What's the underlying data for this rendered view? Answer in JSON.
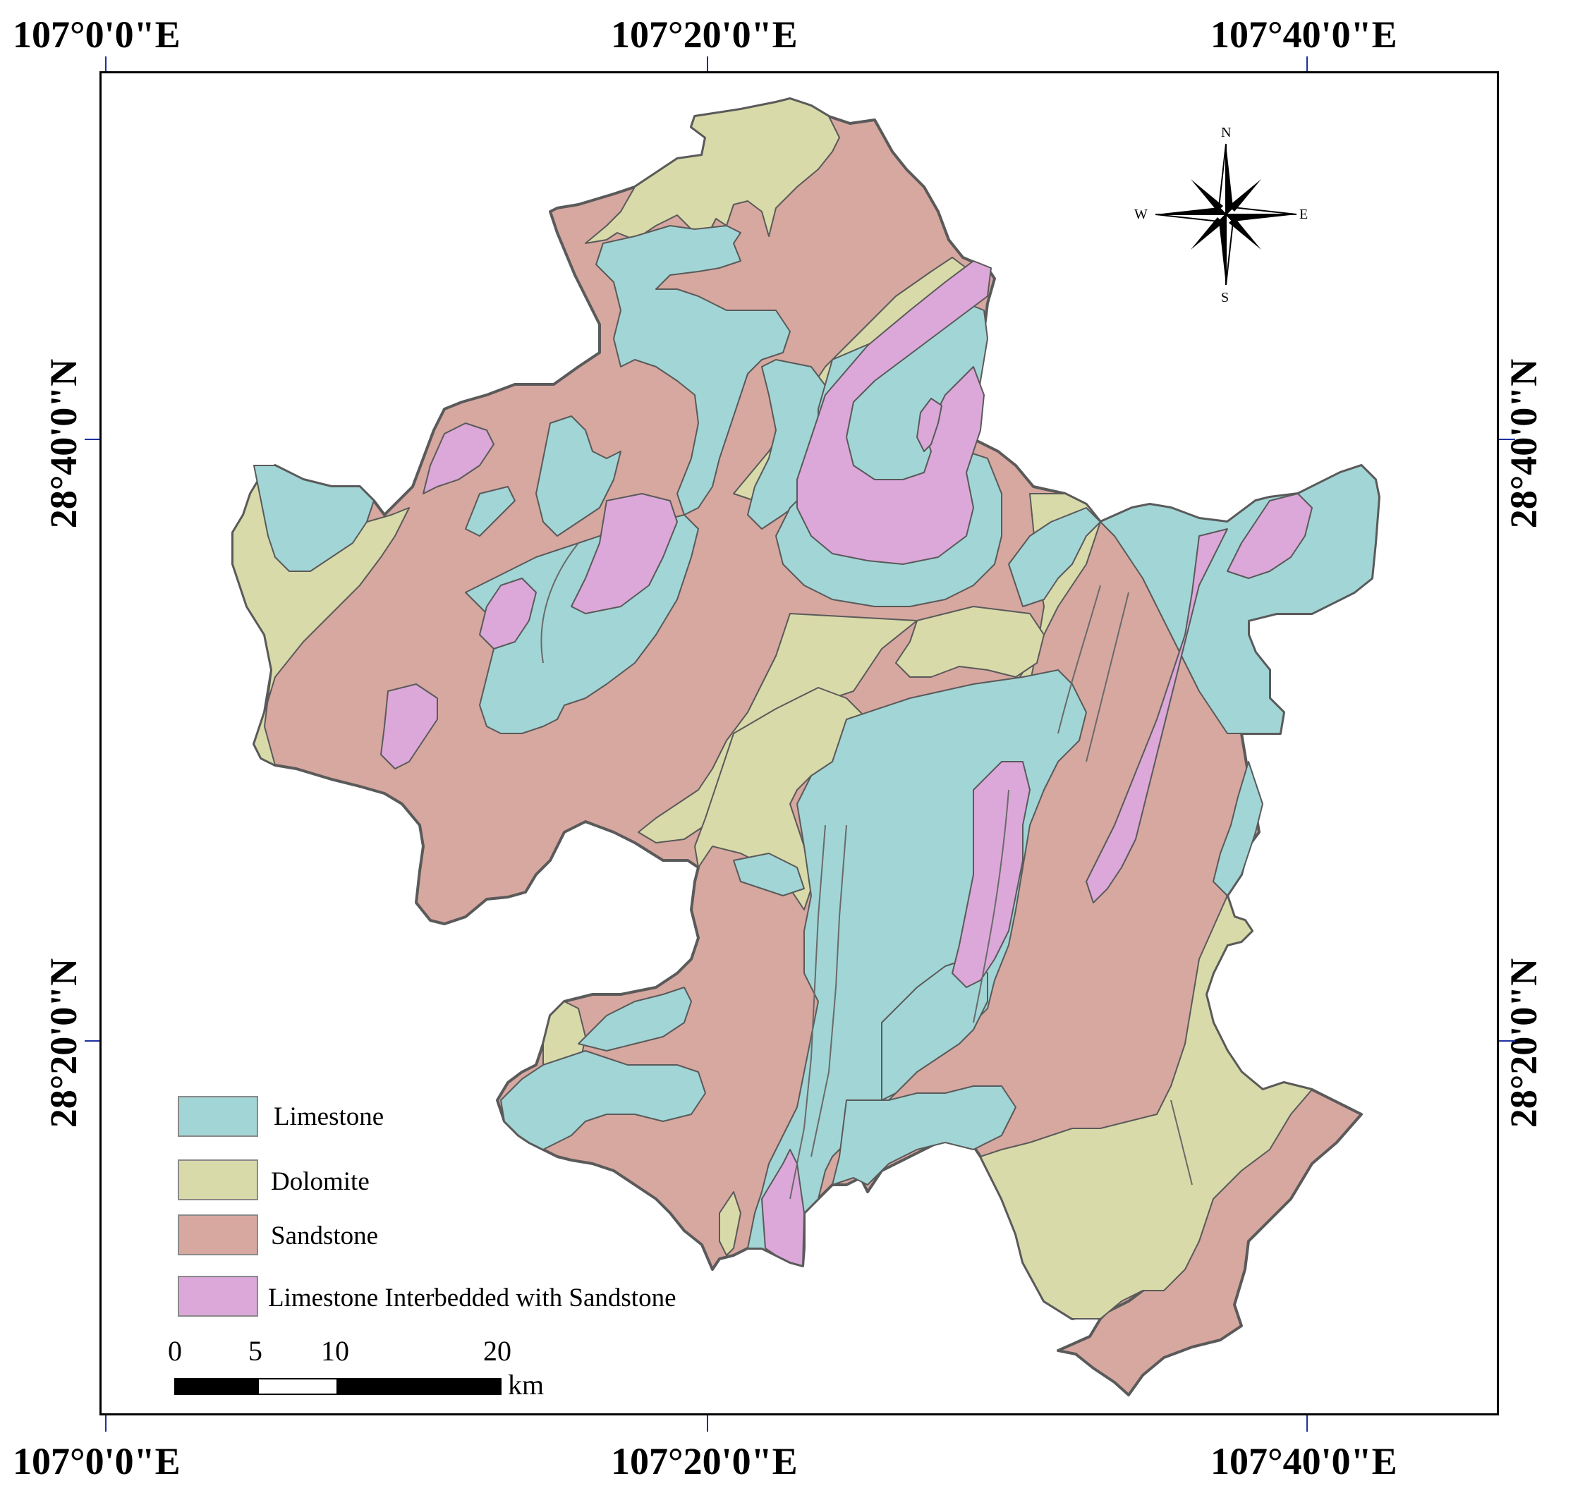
{
  "graticule": {
    "top_labels": [
      "107°0'0\"E",
      "107°20'0\"E",
      "107°40'0\"E"
    ],
    "bottom_labels": [
      "107°0'0\"E",
      "107°20'0\"E",
      "107°40'0\"E"
    ],
    "left_labels": [
      "28°40'0\"N",
      "28°20'0\"N"
    ],
    "right_labels": [
      "28°40'0\"N",
      "28°20'0\"N"
    ],
    "tick_color": "#1f2f9f"
  },
  "compass": {
    "n": "N",
    "s": "S",
    "e": "E",
    "w": "W"
  },
  "legend": {
    "items": [
      {
        "label": "Limestone",
        "color": "#a2d5d6"
      },
      {
        "label": "Dolomite",
        "color": "#d9daa9"
      },
      {
        "label": "Sandstone",
        "color": "#d6a8a0"
      },
      {
        "label": "Limestone Interbedded with Sandstone",
        "color": "#dca8d9"
      }
    ]
  },
  "scale_bar": {
    "ticks": [
      "0",
      "5",
      "10",
      "20"
    ],
    "unit": "km"
  },
  "colors": {
    "limestone": "#a2d5d6",
    "dolomite": "#d9daa9",
    "sandstone": "#d6a8a0",
    "interbedded": "#dca8d9",
    "outline": "#5a5a5a"
  }
}
